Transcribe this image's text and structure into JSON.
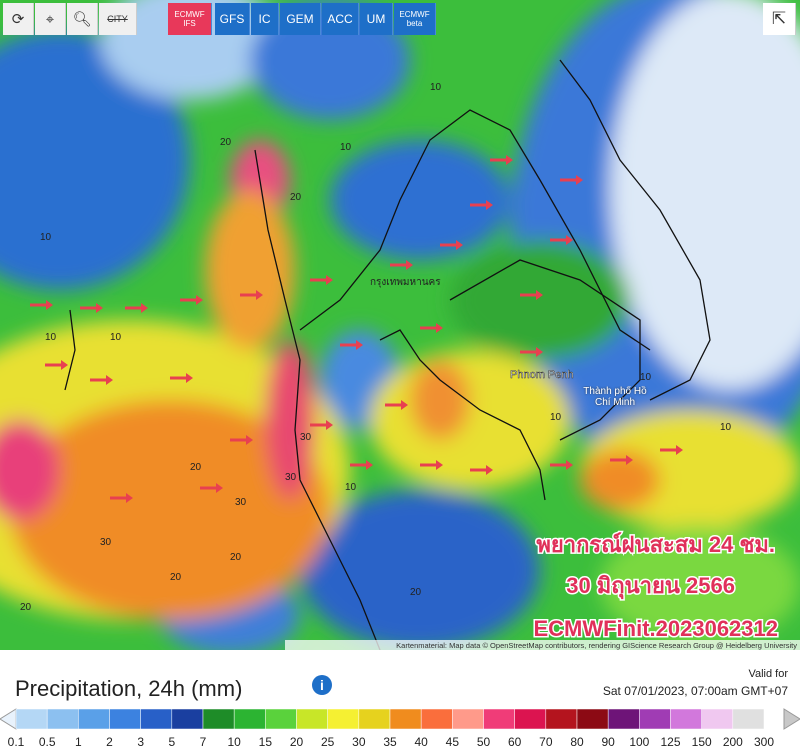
{
  "toolbar": {
    "city": "CITY",
    "models": [
      "ECMWF IFS",
      "GFS",
      "IC",
      "GEM",
      "ACC",
      "UM",
      "ECMWF beta"
    ],
    "active": "ECMWF IFS"
  },
  "map": {
    "places": [
      "กรุงเทพมหานคร",
      "Phnom Penh",
      "Thành phố Hồ Chí Minh"
    ],
    "contour_labels": [
      10,
      10,
      10,
      20,
      20,
      10,
      10,
      30,
      20,
      20,
      30,
      30,
      20,
      10,
      10,
      30,
      20,
      10,
      10,
      20
    ],
    "overlay": [
      "พยากรณ์ฝนสะสม 24 ชม.",
      "30 มิถุนายน 2566",
      "ECMWFinit.2023062312"
    ],
    "attribution": "Kartenmaterial: Map data © OpenStreetMap contributors, rendering GIScience Research Group @ Heidelberg University"
  },
  "legend": {
    "title": "Precipitation, 24h (mm)",
    "valid_label": "Valid for",
    "valid_time": "Sat 07/01/2023, 07:00am GMT+07",
    "labels": [
      0.1,
      0.5,
      1,
      2,
      3,
      5,
      7,
      10,
      15,
      20,
      25,
      30,
      35,
      40,
      45,
      50,
      60,
      70,
      80,
      90,
      100,
      125,
      150,
      200,
      300
    ],
    "colors": [
      "#b4d7f5",
      "#8cc0f0",
      "#5aa0e8",
      "#3c82e0",
      "#2860c8",
      "#1a3fa0",
      "#1e8c28",
      "#2cb432",
      "#5ad23c",
      "#c8e628",
      "#f5f032",
      "#e6d21e",
      "#f08c1e",
      "#fa6e3c",
      "#ff9a8a",
      "#f03c78",
      "#dc1450",
      "#b4141e",
      "#8c0a14",
      "#6e1478",
      "#a03cb4",
      "#d278dc",
      "#f0c8f0",
      "#e0e0e0"
    ]
  }
}
